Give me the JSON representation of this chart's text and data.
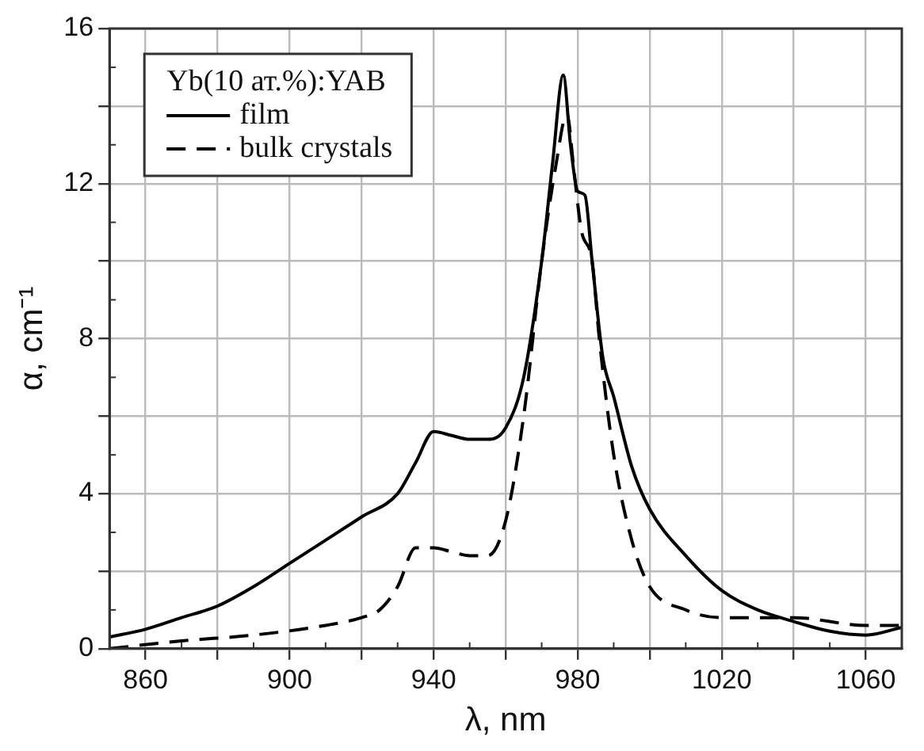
{
  "chart_data": {
    "type": "line",
    "xlabel": "λ, nm",
    "ylabel": "α, cm⁻¹",
    "legend_title": "Yb(10 ат.%):YAB",
    "xlim": [
      850,
      1070
    ],
    "xticks": [
      860,
      {
        "value": 880,
        "label": null
      },
      900,
      {
        "value": 920,
        "label": null
      },
      940,
      {
        "value": 960,
        "label": null
      },
      980,
      {
        "value": 1000,
        "label": null
      },
      1020,
      {
        "value": 1040,
        "label": null
      },
      1060
    ],
    "ylim": [
      0,
      16
    ],
    "yticks": [
      0,
      {
        "value": 2,
        "label": null
      },
      4,
      {
        "value": 6,
        "label": null
      },
      8,
      {
        "value": 10,
        "label": null
      },
      12,
      {
        "value": 14,
        "label": null
      },
      16
    ],
    "grid": true,
    "legend": "top left",
    "marker": "none",
    "series": [
      {
        "name": "film",
        "color": "#000000",
        "line_style": "solid",
        "x": [
          850,
          860,
          870,
          880,
          890,
          900,
          910,
          920,
          930,
          935,
          940,
          945,
          950,
          955,
          960,
          965,
          970,
          973,
          976,
          978,
          980,
          982,
          984,
          987,
          990,
          995,
          1000,
          1010,
          1020,
          1030,
          1040,
          1050,
          1060,
          1070
        ],
        "values": [
          0.3,
          0.5,
          0.8,
          1.1,
          1.6,
          2.2,
          2.8,
          3.4,
          4.0,
          4.8,
          5.6,
          5.5,
          5.4,
          5.4,
          5.7,
          7.0,
          10.0,
          12.5,
          14.8,
          13.0,
          11.8,
          11.7,
          10.0,
          7.5,
          6.5,
          4.7,
          3.6,
          2.4,
          1.5,
          1.0,
          0.7,
          0.45,
          0.35,
          0.55
        ]
      },
      {
        "name": "bulk crystals",
        "color": "#000000",
        "line_style": "dashed",
        "x": [
          850,
          870,
          890,
          910,
          920,
          925,
          930,
          935,
          940,
          945,
          950,
          955,
          960,
          965,
          970,
          974,
          977,
          979,
          981,
          984,
          986,
          990,
          995,
          1000,
          1010,
          1020,
          1040,
          1060,
          1070
        ],
        "values": [
          0.0,
          0.2,
          0.35,
          0.6,
          0.8,
          1.0,
          1.6,
          2.6,
          2.6,
          2.5,
          2.4,
          2.4,
          3.3,
          6.0,
          10.0,
          12.5,
          13.8,
          12.3,
          10.8,
          10.0,
          8.0,
          5.0,
          2.8,
          1.6,
          1.0,
          0.8,
          0.8,
          0.6,
          0.6
        ]
      }
    ]
  }
}
